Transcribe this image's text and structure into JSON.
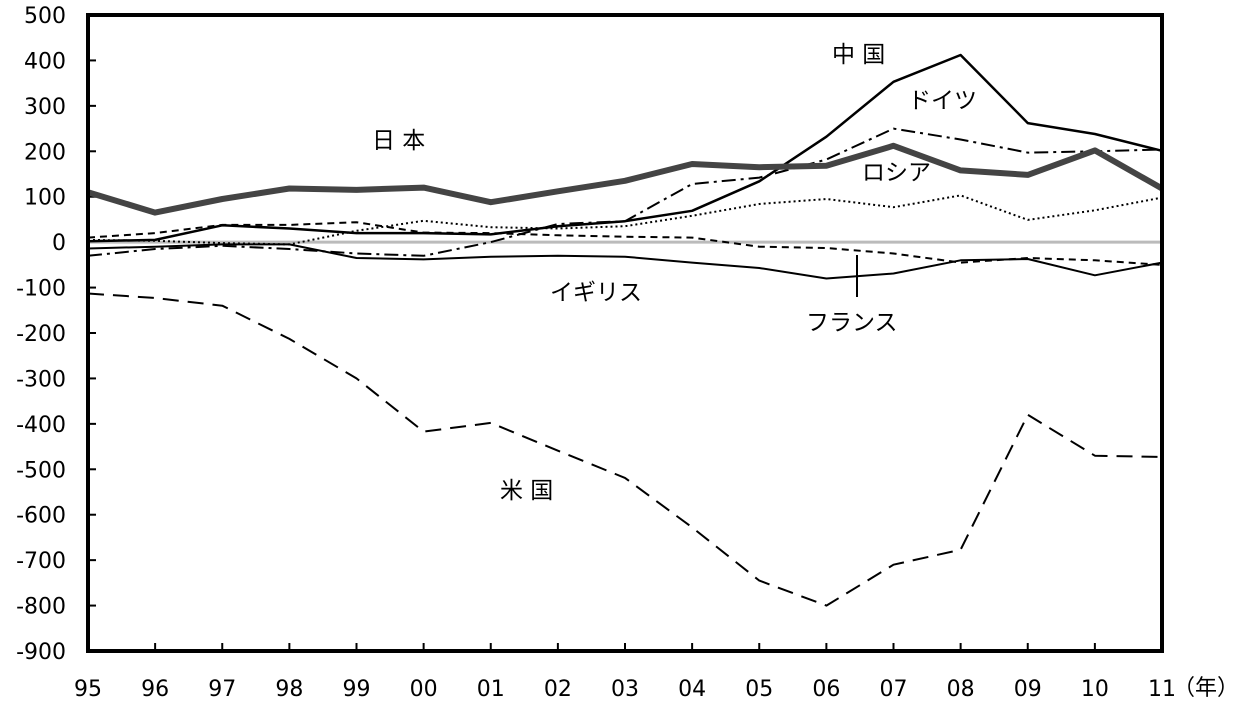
{
  "chart_data": {
    "type": "line",
    "x": [
      "95",
      "96",
      "97",
      "98",
      "99",
      "00",
      "01",
      "02",
      "03",
      "04",
      "05",
      "06",
      "07",
      "08",
      "09",
      "10",
      "11"
    ],
    "x_unit_label": "（年）",
    "ylim": [
      -900,
      500
    ],
    "y_ticks": [
      500,
      400,
      300,
      200,
      100,
      0,
      -100,
      -200,
      -300,
      -400,
      -500,
      -600,
      -700,
      -800,
      -900
    ],
    "grid": false,
    "zero_line": true,
    "series": [
      {
        "name": "日 本",
        "style": "thick",
        "color": "#444444",
        "values": [
          110,
          65,
          95,
          118,
          115,
          120,
          88,
          112,
          135,
          172,
          165,
          168,
          212,
          158,
          148,
          202,
          118
        ]
      },
      {
        "name": "中 国",
        "style": "solid",
        "color": "#000000",
        "values": [
          2,
          5,
          37,
          30,
          20,
          20,
          17,
          35,
          46,
          69,
          134,
          232,
          353,
          412,
          262,
          238,
          201
        ]
      },
      {
        "name": "ドイツ",
        "style": "dashdot",
        "color": "#000000",
        "values": [
          -30,
          -15,
          -8,
          -15,
          -25,
          -30,
          0,
          40,
          46,
          128,
          142,
          182,
          250,
          226,
          197,
          200,
          204
        ]
      },
      {
        "name": "ロシア",
        "style": "dotted",
        "color": "#000000",
        "values": [
          5,
          3,
          -2,
          -5,
          25,
          47,
          33,
          30,
          35,
          58,
          84,
          95,
          77,
          103,
          49,
          70,
          98
        ]
      },
      {
        "name": "フランス",
        "style": "shortdash",
        "color": "#000000",
        "values": [
          10,
          20,
          38,
          38,
          44,
          21,
          20,
          15,
          12,
          10,
          -10,
          -13,
          -25,
          -45,
          -35,
          -40,
          -50
        ]
      },
      {
        "name": "イギリス",
        "style": "thin",
        "color": "#000000",
        "values": [
          -14,
          -10,
          -5,
          -5,
          -35,
          -38,
          -32,
          -30,
          -32,
          -45,
          -57,
          -80,
          -69,
          -40,
          -37,
          -73,
          -45
        ]
      },
      {
        "name": "米 国",
        "style": "longdash",
        "color": "#000000",
        "values": [
          -113,
          -123,
          -140,
          -213,
          -300,
          -417,
          -398,
          -459,
          -519,
          -628,
          -745,
          -800,
          -710,
          -677,
          -380,
          -470,
          -473
        ]
      }
    ]
  }
}
